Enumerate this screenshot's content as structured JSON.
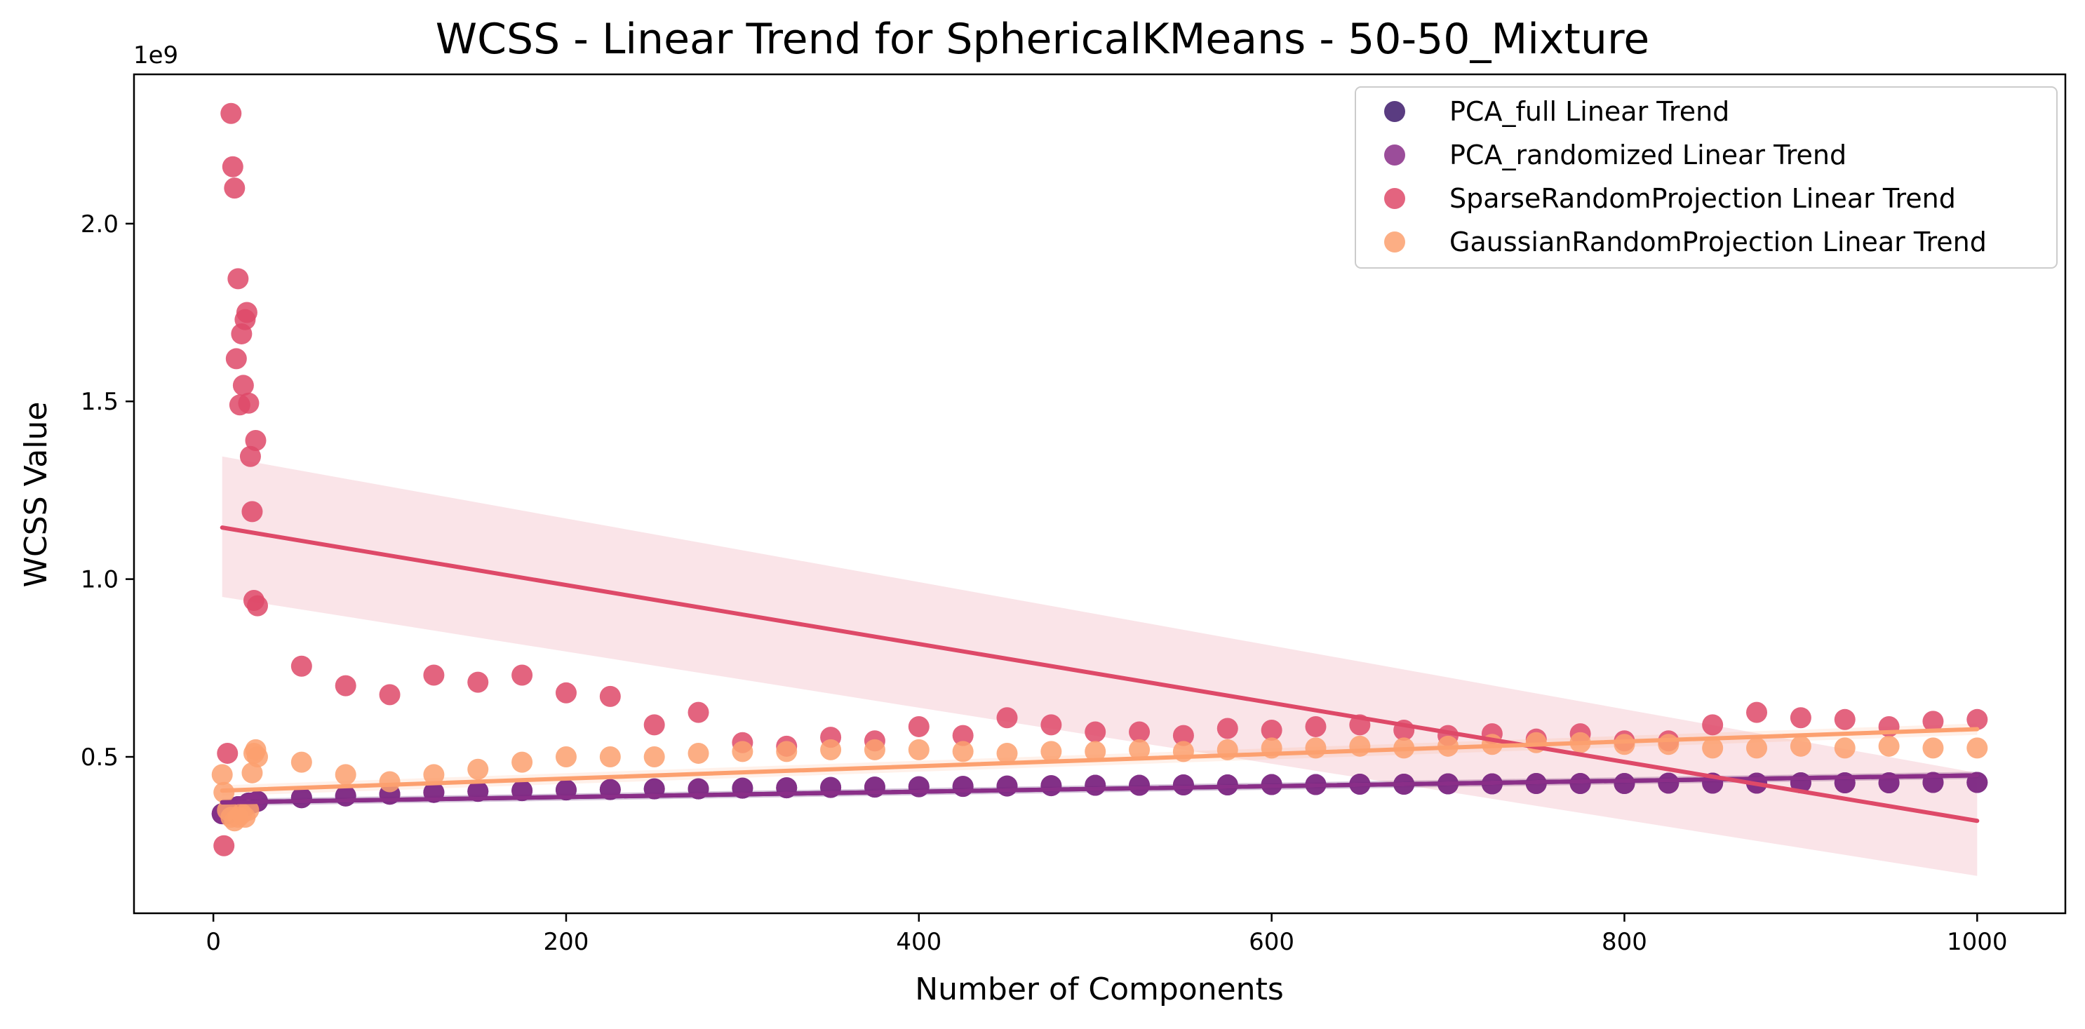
{
  "chart_data": {
    "type": "scatter",
    "title": "WCSS - Linear Trend for SphericalKMeans - 50-50_Mixture",
    "xlabel": "Number of Components",
    "ylabel": "WCSS Value",
    "y_offset_label": "1e9",
    "xlim": [
      -45,
      1050
    ],
    "ylim": [
      0.06,
      2.42
    ],
    "x_ticks": [
      0,
      200,
      400,
      600,
      800,
      1000
    ],
    "x_tick_labels": [
      "0",
      "200",
      "400",
      "600",
      "800",
      "1000"
    ],
    "y_ticks": [
      0.5,
      1.0,
      1.5,
      2.0
    ],
    "y_tick_labels": [
      "0.5",
      "1.0",
      "1.5",
      "2.0"
    ],
    "grid": false,
    "legend_position": "top-right",
    "series": [
      {
        "name": "PCA_full Linear Trend",
        "color": "#3d1a6b",
        "x": [
          5,
          8,
          10,
          12,
          14,
          16,
          18,
          20,
          22,
          25,
          50,
          75,
          100,
          125,
          150,
          175,
          200,
          225,
          250,
          275,
          300,
          325,
          350,
          375,
          400,
          425,
          450,
          475,
          500,
          525,
          550,
          575,
          600,
          625,
          650,
          675,
          700,
          725,
          750,
          775,
          800,
          825,
          850,
          875,
          900,
          925,
          950,
          975,
          1000
        ],
        "y": [
          0.34,
          0.34,
          0.35,
          0.35,
          0.36,
          0.36,
          0.36,
          0.37,
          0.37,
          0.375,
          0.385,
          0.39,
          0.395,
          0.4,
          0.403,
          0.405,
          0.407,
          0.408,
          0.41,
          0.41,
          0.412,
          0.413,
          0.414,
          0.415,
          0.416,
          0.417,
          0.418,
          0.419,
          0.42,
          0.42,
          0.421,
          0.421,
          0.422,
          0.422,
          0.423,
          0.423,
          0.424,
          0.424,
          0.425,
          0.425,
          0.425,
          0.426,
          0.426,
          0.426,
          0.427,
          0.427,
          0.427,
          0.428,
          0.428
        ],
        "trend": {
          "x": [
            5,
            1000
          ],
          "y": [
            0.372,
            0.448
          ],
          "ci_lower": [
            0.362,
            0.438
          ],
          "ci_upper": [
            0.382,
            0.458
          ]
        }
      },
      {
        "name": "PCA_randomized Linear Trend",
        "color": "#8a2e88",
        "x": [
          5,
          8,
          10,
          12,
          14,
          16,
          18,
          20,
          22,
          25,
          50,
          75,
          100,
          125,
          150,
          175,
          200,
          225,
          250,
          275,
          300,
          325,
          350,
          375,
          400,
          425,
          450,
          475,
          500,
          525,
          550,
          575,
          600,
          625,
          650,
          675,
          700,
          725,
          750,
          775,
          800,
          825,
          850,
          875,
          900,
          925,
          950,
          975,
          1000
        ],
        "y": [
          0.34,
          0.34,
          0.35,
          0.35,
          0.36,
          0.36,
          0.36,
          0.37,
          0.37,
          0.375,
          0.385,
          0.39,
          0.395,
          0.4,
          0.403,
          0.405,
          0.407,
          0.408,
          0.41,
          0.41,
          0.412,
          0.413,
          0.414,
          0.415,
          0.416,
          0.417,
          0.418,
          0.419,
          0.42,
          0.42,
          0.421,
          0.421,
          0.422,
          0.422,
          0.423,
          0.423,
          0.424,
          0.424,
          0.425,
          0.425,
          0.425,
          0.426,
          0.426,
          0.426,
          0.427,
          0.427,
          0.427,
          0.428,
          0.428
        ],
        "trend": {
          "x": [
            5,
            1000
          ],
          "y": [
            0.372,
            0.448
          ],
          "ci_lower": [
            0.362,
            0.438
          ],
          "ci_upper": [
            0.382,
            0.458
          ]
        }
      },
      {
        "name": "SparseRandomProjection Linear Trend",
        "color": "#de4968",
        "x": [
          6,
          8,
          10,
          11,
          12,
          13,
          14,
          15,
          16,
          17,
          18,
          19,
          20,
          21,
          22,
          23,
          24,
          25,
          50,
          75,
          100,
          125,
          150,
          175,
          200,
          225,
          250,
          275,
          300,
          325,
          350,
          375,
          400,
          425,
          450,
          475,
          500,
          525,
          550,
          575,
          600,
          625,
          650,
          675,
          700,
          725,
          750,
          775,
          800,
          825,
          850,
          875,
          900,
          925,
          950,
          975,
          1000
        ],
        "y": [
          0.25,
          0.51,
          2.31,
          2.16,
          2.1,
          1.62,
          1.845,
          1.49,
          1.69,
          1.545,
          1.73,
          1.75,
          1.495,
          1.345,
          1.19,
          0.94,
          1.39,
          0.925,
          0.755,
          0.7,
          0.675,
          0.73,
          0.71,
          0.73,
          0.68,
          0.67,
          0.59,
          0.625,
          0.54,
          0.53,
          0.555,
          0.545,
          0.585,
          0.56,
          0.61,
          0.59,
          0.57,
          0.57,
          0.56,
          0.58,
          0.575,
          0.585,
          0.59,
          0.575,
          0.56,
          0.565,
          0.55,
          0.565,
          0.545,
          0.545,
          0.59,
          0.625,
          0.61,
          0.605,
          0.585,
          0.6,
          0.605
        ],
        "trend": {
          "x": [
            5,
            1000
          ],
          "y": [
            1.145,
            0.32
          ],
          "ci_lower": [
            0.95,
            0.165
          ],
          "ci_upper": [
            1.345,
            0.455
          ]
        }
      },
      {
        "name": "GaussianRandomProjection Linear Trend",
        "color": "#fca06f",
        "x": [
          5,
          6,
          8,
          10,
          12,
          14,
          16,
          18,
          20,
          22,
          23,
          24,
          25,
          50,
          75,
          100,
          125,
          150,
          175,
          200,
          225,
          250,
          275,
          300,
          325,
          350,
          375,
          400,
          425,
          450,
          475,
          500,
          525,
          550,
          575,
          600,
          625,
          650,
          675,
          700,
          725,
          750,
          775,
          800,
          825,
          850,
          875,
          900,
          925,
          950,
          975,
          1000
        ],
        "y": [
          0.45,
          0.4,
          0.35,
          0.33,
          0.32,
          0.33,
          0.34,
          0.33,
          0.35,
          0.455,
          0.51,
          0.52,
          0.5,
          0.485,
          0.45,
          0.43,
          0.45,
          0.465,
          0.485,
          0.5,
          0.5,
          0.5,
          0.51,
          0.515,
          0.515,
          0.52,
          0.52,
          0.52,
          0.515,
          0.51,
          0.515,
          0.515,
          0.52,
          0.515,
          0.52,
          0.525,
          0.525,
          0.53,
          0.525,
          0.53,
          0.535,
          0.54,
          0.54,
          0.535,
          0.535,
          0.525,
          0.525,
          0.53,
          0.525,
          0.53,
          0.525,
          0.525
        ],
        "trend": {
          "x": [
            5,
            1000
          ],
          "y": [
            0.405,
            0.578
          ],
          "ci_lower": [
            0.39,
            0.562
          ],
          "ci_upper": [
            0.42,
            0.594
          ]
        }
      }
    ]
  }
}
